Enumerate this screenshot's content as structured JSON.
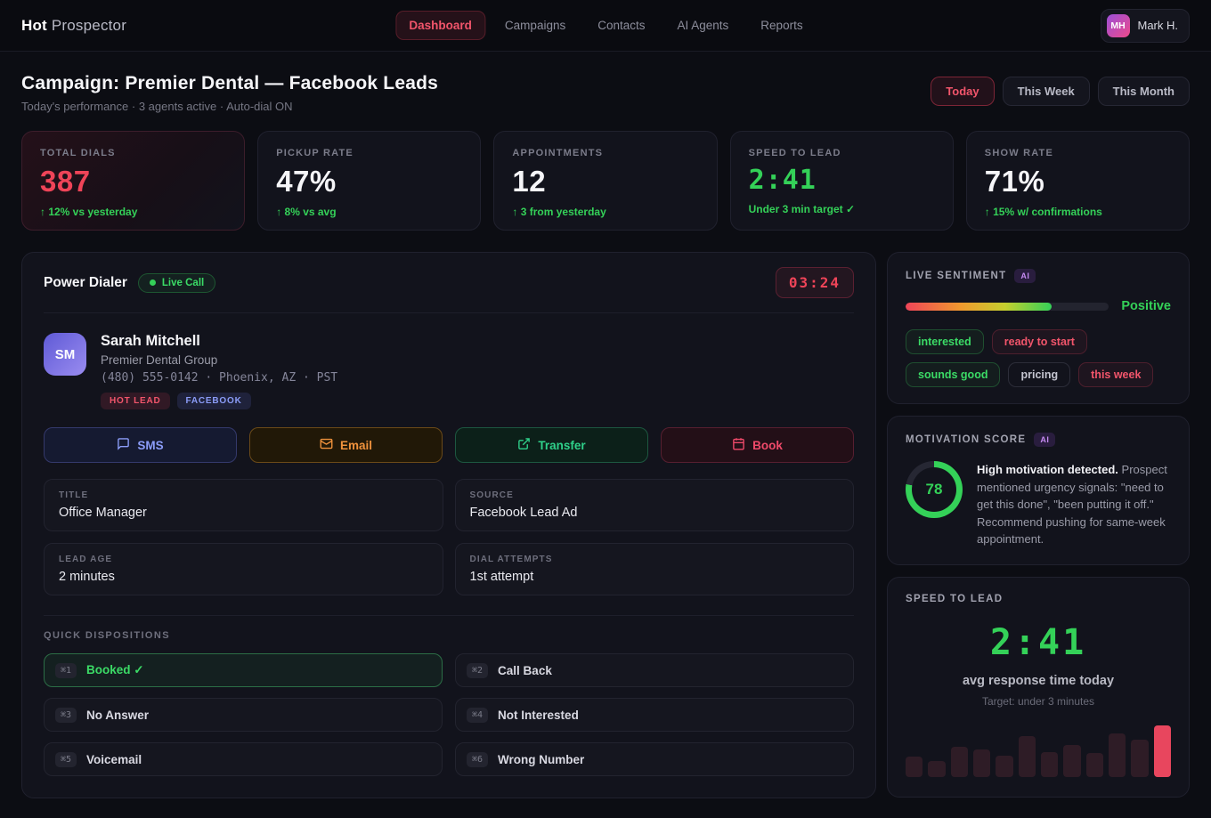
{
  "nav": {
    "brand": {
      "bold": "Hot",
      "light": "Prospector"
    },
    "items": [
      "Dashboard",
      "Campaigns",
      "Contacts",
      "AI Agents",
      "Reports"
    ],
    "active_item": "Dashboard",
    "user": {
      "initials": "MH",
      "name": "Mark H."
    }
  },
  "header": {
    "title": "Campaign: Premier Dental — Facebook Leads",
    "subtitle": "Today's performance · 3 agents active · Auto-dial ON",
    "ranges": [
      "Today",
      "This Week",
      "This Month"
    ],
    "active_range": "Today"
  },
  "stats": [
    {
      "label": "TOTAL DIALS",
      "value": "387",
      "delta": "↑ 12% vs yesterday"
    },
    {
      "label": "PICKUP RATE",
      "value": "47%",
      "delta": "↑ 8% vs avg"
    },
    {
      "label": "APPOINTMENTS",
      "value": "12",
      "delta": "↑ 3 from yesterday"
    },
    {
      "label": "SPEED TO LEAD",
      "value": "2:41",
      "delta": "Under 3 min target ✓"
    },
    {
      "label": "SHOW RATE",
      "value": "71%",
      "delta": "↑ 15% w/ confirmations"
    }
  ],
  "dialer": {
    "title": "Power Dialer",
    "live_badge": "Live Call",
    "timer": "03:24",
    "contact": {
      "initials": "SM",
      "name": "Sarah Mitchell",
      "company": "Premier Dental Group",
      "phone_line": "(480) 555-0142 · Phoenix, AZ · PST",
      "tags": [
        {
          "label": "HOT LEAD",
          "type": "hot"
        },
        {
          "label": "FACEBOOK",
          "type": "source"
        }
      ]
    },
    "actions": [
      {
        "label": "SMS",
        "icon": "chat-icon"
      },
      {
        "label": "Email",
        "icon": "envelope-icon"
      },
      {
        "label": "Transfer",
        "icon": "external-link-icon"
      },
      {
        "label": "Book",
        "icon": "calendar-icon"
      }
    ],
    "fields": [
      {
        "label": "TITLE",
        "value": "Office Manager"
      },
      {
        "label": "SOURCE",
        "value": "Facebook Lead Ad"
      },
      {
        "label": "LEAD AGE",
        "value": "2 minutes"
      },
      {
        "label": "DIAL ATTEMPTS",
        "value": "1st attempt"
      }
    ],
    "dispositions": {
      "label": "QUICK DISPOSITIONS",
      "items": [
        {
          "key": "⌘1",
          "label": "Booked ✓",
          "active": true
        },
        {
          "key": "⌘2",
          "label": "Call Back",
          "active": false
        },
        {
          "key": "⌘3",
          "label": "No Answer",
          "active": false
        },
        {
          "key": "⌘4",
          "label": "Not Interested",
          "active": false
        },
        {
          "key": "⌘5",
          "label": "Voicemail",
          "active": false
        },
        {
          "key": "⌘6",
          "label": "Wrong Number",
          "active": false
        }
      ]
    }
  },
  "sentiment": {
    "title": "LIVE SENTIMENT",
    "ai_badge": "AI",
    "fill_percent": 72,
    "status": "Positive",
    "tags": [
      {
        "label": "interested",
        "type": "positive"
      },
      {
        "label": "ready to start",
        "type": "hot"
      },
      {
        "label": "sounds good",
        "type": "positive"
      },
      {
        "label": "pricing",
        "type": "neutral"
      },
      {
        "label": "this week",
        "type": "hot"
      }
    ]
  },
  "motivation": {
    "title": "MOTIVATION SCORE",
    "ai_badge": "AI",
    "score": 78,
    "summary_bold": "High motivation detected.",
    "summary_rest": " Prospect mentioned urgency signals: \"need to get this done\", \"been putting it off.\" Recommend pushing for same-week appointment."
  },
  "speed": {
    "title": "SPEED TO LEAD",
    "value": "2:41",
    "caption": "avg response time today",
    "target": "Target: under 3 minutes",
    "chart_data": {
      "type": "bar",
      "values": [
        38,
        31,
        57,
        52,
        40,
        78,
        48,
        62,
        46,
        84,
        71,
        100
      ],
      "highlight_index": 11,
      "bar_color": "#2e1c26",
      "highlight_color": "#e8465e"
    }
  },
  "colors": {
    "accent_red": "#ef4458",
    "accent_green": "#34d158",
    "accent_blue": "#8b9cf8",
    "accent_orange": "#f0923c",
    "accent_teal": "#2fd08a",
    "accent_purple": "#c489f0"
  }
}
